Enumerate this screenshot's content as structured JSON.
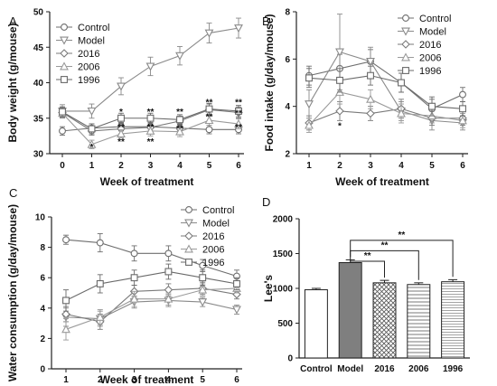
{
  "colors": {
    "Control": "#6e6e6e",
    "Model": "#8a8a8a",
    "2016": "#7a7a7a",
    "2006": "#9a9a9a",
    "1996": "#6a6a6a",
    "axis": "#222222"
  },
  "chart_data": [
    {
      "panel": "A",
      "type": "line",
      "xlabel": "Week of treatment",
      "ylabel": "Body weight (g/mouse)",
      "x": [
        0,
        1,
        2,
        3,
        4,
        5,
        6
      ],
      "xlim": [
        0,
        6
      ],
      "ylim": [
        30,
        50
      ],
      "yticks": [
        30,
        35,
        40,
        45,
        50
      ],
      "legend_position": "top-left",
      "series": [
        {
          "name": "Control",
          "marker": "circle",
          "values": [
            33.2,
            33.6,
            33.8,
            33.8,
            33.6,
            33.4,
            33.4
          ],
          "errors": [
            0.6,
            0.6,
            0.6,
            0.6,
            0.6,
            0.6,
            0.6
          ]
        },
        {
          "name": "Model",
          "marker": "triangle-down",
          "values": [
            36.0,
            36.0,
            39.5,
            42.3,
            43.8,
            47.0,
            47.7
          ],
          "errors": [
            0.9,
            1.0,
            1.2,
            1.3,
            1.3,
            1.4,
            1.4
          ]
        },
        {
          "name": "2016",
          "marker": "diamond",
          "values": [
            35.8,
            33.2,
            33.5,
            33.7,
            34.6,
            36.2,
            35.8
          ],
          "errors": [
            0.7,
            0.6,
            0.7,
            0.7,
            0.7,
            0.8,
            0.8
          ]
        },
        {
          "name": "2006",
          "marker": "triangle-up",
          "values": [
            35.7,
            31.3,
            32.8,
            33.2,
            33.1,
            34.7,
            34.2
          ],
          "errors": [
            0.7,
            0.6,
            0.6,
            0.7,
            0.7,
            0.7,
            0.7
          ]
        },
        {
          "name": "1996",
          "marker": "square",
          "values": [
            35.9,
            33.5,
            35.0,
            35.0,
            34.8,
            36.3,
            36.0
          ],
          "errors": [
            0.7,
            0.7,
            0.7,
            0.7,
            0.7,
            0.8,
            0.8
          ]
        }
      ],
      "annotations": [
        {
          "x": 1,
          "y": 31.0,
          "text": "*"
        },
        {
          "x": 2,
          "y": 36.0,
          "text": "*"
        },
        {
          "x": 2,
          "y": 33.8,
          "text": "**"
        },
        {
          "x": 2,
          "y": 31.8,
          "text": "**"
        },
        {
          "x": 3,
          "y": 36.0,
          "text": "**"
        },
        {
          "x": 3,
          "y": 33.8,
          "text": "**"
        },
        {
          "x": 3,
          "y": 31.8,
          "text": "**"
        },
        {
          "x": 4,
          "y": 36.0,
          "text": "**"
        },
        {
          "x": 4,
          "y": 33.6,
          "text": "**"
        },
        {
          "x": 5,
          "y": 37.3,
          "text": "**"
        },
        {
          "x": 5,
          "y": 35.3,
          "text": "**"
        },
        {
          "x": 6,
          "y": 37.3,
          "text": "**"
        },
        {
          "x": 6,
          "y": 35.8,
          "text": "**"
        },
        {
          "x": 6,
          "y": 33.8,
          "text": "**"
        }
      ]
    },
    {
      "panel": "B",
      "type": "line",
      "xlabel": "Week of treatment",
      "ylabel": "Food intake (g/day/mouse)",
      "x": [
        1,
        2,
        3,
        4,
        5,
        6
      ],
      "xlim": [
        1,
        6
      ],
      "ylim": [
        2,
        8
      ],
      "yticks": [
        2,
        4,
        6,
        8
      ],
      "legend_position": "top-right",
      "series": [
        {
          "name": "Control",
          "marker": "circle",
          "values": [
            5.3,
            5.6,
            5.9,
            5.0,
            3.9,
            4.5
          ],
          "errors": [
            0.4,
            0.6,
            0.5,
            0.4,
            0.4,
            0.3
          ]
        },
        {
          "name": "Model",
          "marker": "triangle-down",
          "values": [
            4.1,
            6.3,
            5.9,
            3.8,
            3.4,
            3.3
          ],
          "errors": [
            0.6,
            1.6,
            0.6,
            0.4,
            0.4,
            0.3
          ]
        },
        {
          "name": "2016",
          "marker": "diamond",
          "values": [
            3.3,
            3.8,
            3.7,
            3.9,
            3.5,
            3.5
          ],
          "errors": [
            0.3,
            0.4,
            0.3,
            0.4,
            0.3,
            0.3
          ]
        },
        {
          "name": "2006",
          "marker": "triangle-up",
          "values": [
            3.2,
            4.6,
            4.3,
            3.7,
            3.6,
            3.4
          ],
          "errors": [
            0.3,
            0.5,
            0.4,
            0.4,
            0.3,
            0.3
          ]
        },
        {
          "name": "1996",
          "marker": "square",
          "values": [
            5.2,
            5.1,
            5.3,
            5.0,
            4.0,
            3.9
          ],
          "errors": [
            0.4,
            0.5,
            0.4,
            0.4,
            0.4,
            0.3
          ]
        }
      ],
      "annotations": [
        {
          "x": 2,
          "y": 3.2,
          "text": "*"
        }
      ]
    },
    {
      "panel": "C",
      "type": "line",
      "xlabel": "Week of treatment",
      "ylabel": "Water consumption (g/day/mouse)",
      "x": [
        1,
        2,
        3,
        4,
        5,
        6
      ],
      "xlim": [
        1,
        6
      ],
      "ylim": [
        0,
        10
      ],
      "yticks": [
        0,
        2,
        4,
        6,
        8,
        10
      ],
      "legend_position": "top-right",
      "series": [
        {
          "name": "Control",
          "marker": "circle",
          "values": [
            8.5,
            8.3,
            7.6,
            7.6,
            6.8,
            6.1
          ],
          "errors": [
            0.3,
            0.6,
            0.5,
            0.5,
            0.4,
            0.4
          ]
        },
        {
          "name": "Model",
          "marker": "triangle-down",
          "values": [
            3.4,
            3.3,
            4.4,
            4.5,
            4.4,
            3.9
          ],
          "errors": [
            0.6,
            0.5,
            0.4,
            0.4,
            0.3,
            0.3
          ]
        },
        {
          "name": "2016",
          "marker": "diamond",
          "values": [
            3.6,
            3.1,
            5.1,
            5.2,
            5.3,
            4.9
          ],
          "errors": [
            0.5,
            0.5,
            0.4,
            0.4,
            0.4,
            0.3
          ]
        },
        {
          "name": "2006",
          "marker": "triangle-up",
          "values": [
            2.6,
            3.4,
            4.6,
            4.6,
            5.2,
            5.3
          ],
          "errors": [
            0.7,
            0.5,
            0.5,
            0.4,
            0.4,
            0.3
          ]
        },
        {
          "name": "1996",
          "marker": "square",
          "values": [
            4.5,
            5.6,
            6.0,
            6.4,
            6.0,
            5.6
          ],
          "errors": [
            0.7,
            0.6,
            0.5,
            0.5,
            0.5,
            0.4
          ]
        }
      ],
      "annotations": []
    },
    {
      "panel": "D",
      "type": "bar",
      "xlabel": "",
      "ylabel": "Lee's",
      "categories": [
        "Control",
        "Model",
        "2016",
        "2006",
        "1996"
      ],
      "values": [
        980,
        1370,
        1080,
        1055,
        1095
      ],
      "errors": [
        20,
        40,
        35,
        25,
        30
      ],
      "patterns": [
        "none",
        "solid-gray",
        "crosshatch",
        "horizontal-lines",
        "horizontal-lines-fine"
      ],
      "ylim": [
        0,
        2000
      ],
      "yticks": [
        0,
        500,
        1000,
        1500,
        2000
      ],
      "brackets": [
        {
          "from": "Model",
          "to": "2016",
          "text": "**"
        },
        {
          "from": "Model",
          "to": "2006",
          "text": "**"
        },
        {
          "from": "Model",
          "to": "1996",
          "text": "**"
        }
      ]
    }
  ]
}
